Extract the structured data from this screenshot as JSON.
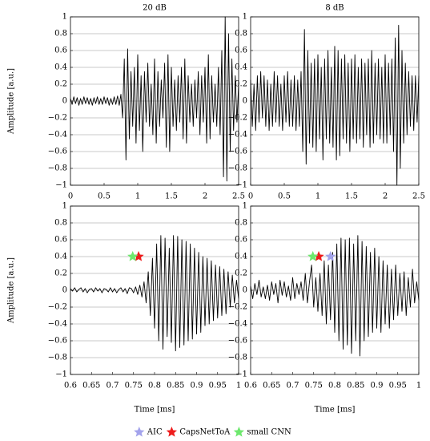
{
  "chart_data": [
    {
      "type": "line",
      "title": "20 dB",
      "ylabel": "Amplitude [a.u.]",
      "xlim": [
        0,
        2.5
      ],
      "ylim": [
        -1,
        1
      ],
      "xticks": [
        0,
        0.5,
        1,
        1.5,
        2,
        2.5
      ],
      "yticks": [
        {
          "value": -1,
          "label": "−1"
        },
        {
          "value": -0.8,
          "label": "−0.8"
        },
        {
          "value": -0.6,
          "label": "−0.6"
        },
        {
          "value": -0.4,
          "label": "−0.4"
        },
        {
          "value": -0.2,
          "label": "−0.2"
        },
        0,
        0.2,
        0.4,
        0.6,
        0.8,
        1
      ],
      "grid": true,
      "x": [
        0,
        0.025,
        0.05,
        0.075,
        0.1,
        0.125,
        0.15,
        0.175,
        0.2,
        0.225,
        0.25,
        0.275,
        0.3,
        0.325,
        0.35,
        0.375,
        0.4,
        0.425,
        0.45,
        0.475,
        0.5,
        0.525,
        0.55,
        0.575,
        0.6,
        0.625,
        0.65,
        0.675,
        0.7,
        0.725,
        0.75,
        0.775,
        0.8,
        0.825,
        0.85,
        0.875,
        0.9,
        0.925,
        0.95,
        0.975,
        1,
        1.025,
        1.05,
        1.075,
        1.1,
        1.125,
        1.15,
        1.175,
        1.2,
        1.225,
        1.25,
        1.275,
        1.3,
        1.325,
        1.35,
        1.375,
        1.4,
        1.425,
        1.45,
        1.475,
        1.5,
        1.525,
        1.55,
        1.575,
        1.6,
        1.625,
        1.65,
        1.675,
        1.7,
        1.725,
        1.75,
        1.775,
        1.8,
        1.825,
        1.85,
        1.875,
        1.9,
        1.925,
        1.95,
        1.975,
        2,
        2.025,
        2.05,
        2.075,
        2.1,
        2.125,
        2.15,
        2.175,
        2.2,
        2.225,
        2.25,
        2.275,
        2.3,
        2.325,
        2.35,
        2.375,
        2.4,
        2.425,
        2.45,
        2.475,
        2.5
      ],
      "series": [
        {
          "color": "#000000",
          "values": [
            0.03,
            -0.04,
            0.05,
            -0.03,
            0.04,
            -0.05,
            0.03,
            -0.04,
            0.05,
            -0.03,
            0.04,
            -0.04,
            0.03,
            -0.05,
            0.04,
            -0.03,
            0.05,
            -0.04,
            0.03,
            -0.04,
            0.05,
            -0.03,
            0.04,
            -0.05,
            0.03,
            -0.04,
            0.05,
            -0.04,
            0.06,
            -0.05,
            0.08,
            -0.2,
            0.5,
            -0.7,
            0.62,
            -0.45,
            0.35,
            -0.3,
            0.4,
            -0.5,
            0.55,
            -0.35,
            0.3,
            -0.6,
            0.35,
            -0.25,
            0.45,
            -0.3,
            0.2,
            -0.4,
            0.5,
            -0.5,
            0.35,
            -0.3,
            0.25,
            -0.2,
            0.45,
            -0.55,
            0.55,
            -0.6,
            0.4,
            -0.3,
            0.25,
            -0.35,
            0.3,
            -0.25,
            0.4,
            -0.45,
            0.5,
            -0.5,
            0.3,
            -0.25,
            0.2,
            -0.3,
            0.25,
            -0.2,
            0.35,
            -0.4,
            0.3,
            -0.25,
            0.4,
            -0.5,
            0.55,
            -0.45,
            0.3,
            -0.25,
            0.2,
            -0.3,
            0.4,
            -0.4,
            0.6,
            -0.9,
            1,
            -0.95,
            0.8,
            -0.6,
            0.5,
            -0.35,
            0.3,
            -0.25,
            0.2
          ]
        }
      ]
    },
    {
      "type": "line",
      "title": "8 dB",
      "xlim": [
        0,
        2.5
      ],
      "ylim": [
        -1,
        1
      ],
      "xticks": [
        0,
        0.5,
        1,
        1.5,
        2,
        2.5
      ],
      "yticks": [
        {
          "value": -1,
          "label": "−1"
        },
        {
          "value": -0.8,
          "label": "−0.8"
        },
        {
          "value": -0.6,
          "label": "−0.6"
        },
        {
          "value": -0.4,
          "label": "−0.4"
        },
        {
          "value": -0.2,
          "label": "−0.2"
        },
        0,
        0.2,
        0.4,
        0.6,
        0.8,
        1
      ],
      "grid": true,
      "x": [
        0,
        0.025,
        0.05,
        0.075,
        0.1,
        0.125,
        0.15,
        0.175,
        0.2,
        0.225,
        0.25,
        0.275,
        0.3,
        0.325,
        0.35,
        0.375,
        0.4,
        0.425,
        0.45,
        0.475,
        0.5,
        0.525,
        0.55,
        0.575,
        0.6,
        0.625,
        0.65,
        0.675,
        0.7,
        0.725,
        0.75,
        0.775,
        0.8,
        0.825,
        0.85,
        0.875,
        0.9,
        0.925,
        0.95,
        0.975,
        1,
        1.025,
        1.05,
        1.075,
        1.1,
        1.125,
        1.15,
        1.175,
        1.2,
        1.225,
        1.25,
        1.275,
        1.3,
        1.325,
        1.35,
        1.375,
        1.4,
        1.425,
        1.45,
        1.475,
        1.5,
        1.525,
        1.55,
        1.575,
        1.6,
        1.625,
        1.65,
        1.675,
        1.7,
        1.725,
        1.75,
        1.775,
        1.8,
        1.825,
        1.85,
        1.875,
        1.9,
        1.925,
        1.95,
        1.975,
        2,
        2.025,
        2.05,
        2.075,
        2.1,
        2.125,
        2.15,
        2.175,
        2.2,
        2.225,
        2.25,
        2.275,
        2.3,
        2.325,
        2.35,
        2.375,
        2.4,
        2.425,
        2.45,
        2.475,
        2.5
      ],
      "series": [
        {
          "color": "#000000",
          "values": [
            0.25,
            -0.3,
            0.2,
            -0.35,
            0.3,
            -0.25,
            0.35,
            -0.2,
            0.3,
            -0.3,
            0.25,
            -0.35,
            0.2,
            -0.3,
            0.35,
            -0.25,
            0.3,
            -0.3,
            0.2,
            -0.35,
            0.3,
            -0.25,
            0.35,
            -0.3,
            0.25,
            -0.3,
            0.3,
            -0.35,
            0.25,
            -0.3,
            0.35,
            -0.6,
            0.85,
            -0.75,
            0.6,
            -0.5,
            0.45,
            -0.55,
            0.5,
            -0.6,
            0.55,
            -0.45,
            0.4,
            -0.7,
            0.5,
            -0.45,
            0.6,
            -0.5,
            0.4,
            -0.55,
            0.65,
            -0.7,
            0.6,
            -0.65,
            0.5,
            -0.45,
            0.55,
            -0.5,
            0.45,
            -0.6,
            0.5,
            -0.45,
            0.55,
            -0.5,
            0.4,
            -0.45,
            0.5,
            -0.55,
            0.45,
            -0.4,
            0.5,
            -0.55,
            0.6,
            -0.5,
            0.45,
            -0.4,
            0.5,
            -0.45,
            0.4,
            -0.5,
            0.55,
            -0.5,
            0.45,
            -0.4,
            0.5,
            -0.6,
            0.75,
            -1,
            0.9,
            -0.8,
            0.6,
            -0.5,
            0.45,
            -0.4,
            0.35,
            -0.3,
            0.3,
            -0.35,
            0.3,
            -0.25,
            0.3
          ]
        }
      ]
    },
    {
      "type": "line",
      "ylabel": "Amplitude [a.u.]",
      "xlabel": "Time [ms]",
      "xlim": [
        0.6,
        1
      ],
      "ylim": [
        -1,
        1
      ],
      "xticks": [
        0.6,
        0.65,
        0.7,
        0.75,
        0.8,
        0.85,
        0.9,
        0.95,
        1
      ],
      "yticks": [
        {
          "value": -1,
          "label": "−1"
        },
        {
          "value": -0.8,
          "label": "−0.8"
        },
        {
          "value": -0.6,
          "label": "−0.6"
        },
        {
          "value": -0.4,
          "label": "−0.4"
        },
        {
          "value": -0.2,
          "label": "−0.2"
        },
        0,
        0.2,
        0.4,
        0.6,
        0.8,
        1
      ],
      "grid": true,
      "x": [
        0.6,
        0.605,
        0.61,
        0.615,
        0.62,
        0.625,
        0.63,
        0.635,
        0.64,
        0.645,
        0.65,
        0.655,
        0.66,
        0.665,
        0.67,
        0.675,
        0.68,
        0.685,
        0.69,
        0.695,
        0.7,
        0.705,
        0.71,
        0.715,
        0.72,
        0.725,
        0.73,
        0.735,
        0.74,
        0.745,
        0.75,
        0.755,
        0.76,
        0.765,
        0.77,
        0.775,
        0.78,
        0.785,
        0.79,
        0.795,
        0.8,
        0.805,
        0.81,
        0.815,
        0.82,
        0.825,
        0.83,
        0.835,
        0.84,
        0.845,
        0.85,
        0.855,
        0.86,
        0.865,
        0.87,
        0.875,
        0.88,
        0.885,
        0.89,
        0.895,
        0.9,
        0.905,
        0.91,
        0.915,
        0.92,
        0.925,
        0.93,
        0.935,
        0.94,
        0.945,
        0.95,
        0.955,
        0.96,
        0.965,
        0.97,
        0.975,
        0.98,
        0.985,
        0.99,
        0.995,
        1
      ],
      "series": [
        {
          "color": "#000000",
          "values": [
            0.02,
            -0.01,
            0.03,
            -0.02,
            0.01,
            0.03,
            -0.02,
            0.02,
            -0.03,
            0.01,
            0.02,
            -0.02,
            0.03,
            -0.01,
            0.02,
            -0.03,
            0.02,
            0.01,
            -0.02,
            0.03,
            -0.02,
            0.02,
            -0.03,
            0.01,
            0.03,
            -0.02,
            0.02,
            -0.04,
            0.03,
            0.02,
            -0.03,
            0.04,
            -0.05,
            0.06,
            -0.08,
            0.1,
            -0.15,
            0.22,
            -0.3,
            0.38,
            -0.45,
            0.55,
            -0.6,
            0.65,
            -0.7,
            0.62,
            -0.55,
            0.5,
            -0.62,
            0.65,
            -0.72,
            0.64,
            -0.68,
            0.6,
            -0.65,
            0.58,
            -0.6,
            0.55,
            -0.58,
            0.5,
            -0.52,
            0.45,
            -0.5,
            0.4,
            -0.42,
            0.38,
            -0.4,
            0.35,
            -0.36,
            0.3,
            -0.33,
            0.28,
            -0.3,
            0.25,
            -0.28,
            0.22,
            -0.2,
            0.18,
            -0.15,
            0.12,
            -0.1
          ]
        }
      ],
      "markers": [
        {
          "color": "#ee1c1c",
          "x": 0.762,
          "y": 0.4
        },
        {
          "color": "#6ee86e",
          "x": 0.748,
          "y": 0.4
        }
      ]
    },
    {
      "type": "line",
      "xlabel": "Time [ms]",
      "xlim": [
        0.6,
        1
      ],
      "ylim": [
        -1,
        1
      ],
      "xticks": [
        0.6,
        0.65,
        0.7,
        0.75,
        0.8,
        0.85,
        0.9,
        0.95,
        1
      ],
      "yticks": [
        {
          "value": -1,
          "label": "−1"
        },
        {
          "value": -0.8,
          "label": "−0.8"
        },
        {
          "value": -0.6,
          "label": "−0.6"
        },
        {
          "value": -0.4,
          "label": "−0.4"
        },
        {
          "value": -0.2,
          "label": "−0.2"
        },
        0,
        0.2,
        0.4,
        0.6,
        0.8,
        1
      ],
      "grid": true,
      "x": [
        0.6,
        0.605,
        0.61,
        0.615,
        0.62,
        0.625,
        0.63,
        0.635,
        0.64,
        0.645,
        0.65,
        0.655,
        0.66,
        0.665,
        0.67,
        0.675,
        0.68,
        0.685,
        0.69,
        0.695,
        0.7,
        0.705,
        0.71,
        0.715,
        0.72,
        0.725,
        0.73,
        0.735,
        0.74,
        0.745,
        0.75,
        0.755,
        0.76,
        0.765,
        0.77,
        0.775,
        0.78,
        0.785,
        0.79,
        0.795,
        0.8,
        0.805,
        0.81,
        0.815,
        0.82,
        0.825,
        0.83,
        0.835,
        0.84,
        0.845,
        0.85,
        0.855,
        0.86,
        0.865,
        0.87,
        0.875,
        0.88,
        0.885,
        0.89,
        0.895,
        0.9,
        0.905,
        0.91,
        0.915,
        0.92,
        0.925,
        0.93,
        0.935,
        0.94,
        0.945,
        0.95,
        0.955,
        0.96,
        0.965,
        0.97,
        0.975,
        0.98,
        0.985,
        0.99,
        0.995,
        1
      ],
      "series": [
        {
          "color": "#000000",
          "values": [
            0.05,
            -0.1,
            0.08,
            -0.05,
            0.12,
            -0.08,
            0.04,
            -0.1,
            0.06,
            -0.12,
            0.1,
            -0.05,
            0.08,
            -0.15,
            0.12,
            -0.06,
            0.1,
            -0.08,
            0.05,
            -0.12,
            0.15,
            -0.1,
            0.08,
            -0.05,
            0.1,
            -0.12,
            0.2,
            -0.15,
            0.1,
            0.3,
            -0.2,
            0.15,
            -0.25,
            0.2,
            -0.3,
            0.35,
            -0.4,
            0.3,
            -0.35,
            0.45,
            -0.5,
            0.55,
            -0.6,
            0.62,
            -0.7,
            0.6,
            -0.65,
            0.62,
            -0.75,
            0.55,
            -0.6,
            0.65,
            -0.78,
            0.58,
            -0.6,
            0.52,
            -0.55,
            0.45,
            -0.5,
            0.5,
            -0.45,
            0.4,
            -0.5,
            0.35,
            -0.4,
            0.3,
            -0.45,
            0.25,
            -0.35,
            0.3,
            -0.3,
            0.2,
            -0.25,
            0.22,
            -0.3,
            0.15,
            -0.2,
            0.25,
            -0.15,
            0.1,
            -0.12
          ]
        }
      ],
      "legend": "bottom-center",
      "markers": [
        {
          "name": "AIC",
          "color": "#a3a3ec",
          "x": 0.79,
          "y": 0.4
        },
        {
          "name": "CapsNetToA",
          "color": "#ee1c1c",
          "x": 0.762,
          "y": 0.4
        },
        {
          "name": "small CNN",
          "color": "#6ee86e",
          "x": 0.748,
          "y": 0.4
        }
      ]
    }
  ]
}
